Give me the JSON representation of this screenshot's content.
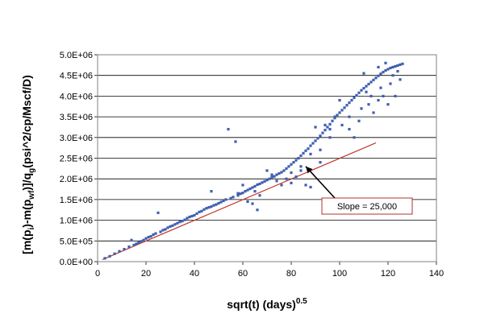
{
  "chart_data": {
    "type": "scatter",
    "xlabel": "sqrt(t) (days)",
    "xlabel_sup": "0.5",
    "ylabel_parts": [
      "[m(p",
      "i",
      ")-m(p",
      "wf",
      ")]/q",
      "g",
      "(psi^2/cp/Mscf/D)"
    ],
    "xlim": [
      0,
      140
    ],
    "ylim": [
      0,
      5000000
    ],
    "x_ticks": [
      0,
      20,
      40,
      60,
      80,
      100,
      120,
      140
    ],
    "x_tick_labels": [
      "0",
      "20",
      "40",
      "60",
      "80",
      "100",
      "120",
      "140"
    ],
    "y_ticks": [
      0,
      500000,
      1000000,
      1500000,
      2000000,
      2500000,
      3000000,
      3500000,
      4000000,
      4500000,
      5000000
    ],
    "y_tick_labels": [
      "0.0E+00",
      "5.0E+05",
      "1.0E+06",
      "1.5E+06",
      "2.0E+06",
      "2.5E+06",
      "3.0E+06",
      "3.5E+06",
      "4.0E+06",
      "4.5E+06",
      "5.0E+06"
    ],
    "grid": "horizontal",
    "series": [
      {
        "kind": "points",
        "color": "#3f5fb0",
        "points": [
          [
            3,
            80000
          ],
          [
            5,
            130000
          ],
          [
            7,
            190000
          ],
          [
            9,
            250000
          ],
          [
            11,
            300000
          ],
          [
            13,
            360000
          ],
          [
            14,
            520000
          ],
          [
            15,
            400000
          ],
          [
            16,
            430000
          ],
          [
            17,
            460000
          ],
          [
            18,
            490000
          ],
          [
            19,
            520000
          ],
          [
            20,
            560000
          ],
          [
            21,
            590000
          ],
          [
            22,
            610000
          ],
          [
            23,
            650000
          ],
          [
            24,
            680000
          ],
          [
            25,
            1180000
          ],
          [
            26,
            720000
          ],
          [
            27,
            760000
          ],
          [
            28,
            780000
          ],
          [
            29,
            820000
          ],
          [
            30,
            850000
          ],
          [
            31,
            870000
          ],
          [
            32,
            900000
          ],
          [
            33,
            930000
          ],
          [
            34,
            960000
          ],
          [
            35,
            980000
          ],
          [
            36,
            1010000
          ],
          [
            37,
            1050000
          ],
          [
            38,
            1080000
          ],
          [
            39,
            1100000
          ],
          [
            40,
            1120000
          ],
          [
            41,
            1160000
          ],
          [
            42,
            1200000
          ],
          [
            43,
            1220000
          ],
          [
            44,
            1260000
          ],
          [
            45,
            1290000
          ],
          [
            46,
            1310000
          ],
          [
            47,
            1330000
          ],
          [
            48,
            1360000
          ],
          [
            49,
            1380000
          ],
          [
            50,
            1410000
          ],
          [
            51,
            1440000
          ],
          [
            52,
            1470000
          ],
          [
            53,
            1500000
          ],
          [
            47,
            1700000
          ],
          [
            54,
            3200000
          ],
          [
            55,
            1530000
          ],
          [
            56,
            1560000
          ],
          [
            57,
            2900000
          ],
          [
            58,
            1600000
          ],
          [
            59,
            1640000
          ],
          [
            60,
            1660000
          ],
          [
            61,
            1700000
          ],
          [
            62,
            1730000
          ],
          [
            63,
            1760000
          ],
          [
            64,
            1790000
          ],
          [
            65,
            1820000
          ],
          [
            66,
            1860000
          ],
          [
            67,
            1880000
          ],
          [
            68,
            1910000
          ],
          [
            69,
            1940000
          ],
          [
            70,
            1970000
          ],
          [
            71,
            2000000
          ],
          [
            72,
            2040000
          ],
          [
            73,
            2060000
          ],
          [
            74,
            2100000
          ],
          [
            75,
            2130000
          ],
          [
            76,
            2160000
          ],
          [
            77,
            2200000
          ],
          [
            78,
            2250000
          ],
          [
            79,
            2300000
          ],
          [
            80,
            2350000
          ],
          [
            81,
            2400000
          ],
          [
            82,
            2450000
          ],
          [
            83,
            2500000
          ],
          [
            84,
            2560000
          ],
          [
            85,
            2620000
          ],
          [
            86,
            2680000
          ],
          [
            87,
            2730000
          ],
          [
            88,
            2800000
          ],
          [
            89,
            2860000
          ],
          [
            90,
            2920000
          ],
          [
            91,
            2980000
          ],
          [
            92,
            3040000
          ],
          [
            93,
            3110000
          ],
          [
            94,
            3180000
          ],
          [
            95,
            3250000
          ],
          [
            96,
            3320000
          ],
          [
            97,
            3400000
          ],
          [
            98,
            3470000
          ],
          [
            99,
            3540000
          ],
          [
            100,
            3600000
          ],
          [
            101,
            3660000
          ],
          [
            102,
            3720000
          ],
          [
            103,
            3780000
          ],
          [
            104,
            3840000
          ],
          [
            105,
            3900000
          ],
          [
            106,
            3960000
          ],
          [
            107,
            4020000
          ],
          [
            108,
            4080000
          ],
          [
            109,
            4140000
          ],
          [
            110,
            4190000
          ],
          [
            111,
            4240000
          ],
          [
            112,
            4290000
          ],
          [
            113,
            4340000
          ],
          [
            114,
            4390000
          ],
          [
            115,
            4440000
          ],
          [
            116,
            4490000
          ],
          [
            117,
            4540000
          ],
          [
            118,
            4580000
          ],
          [
            119,
            4620000
          ],
          [
            120,
            4650000
          ],
          [
            121,
            4680000
          ],
          [
            122,
            4700000
          ],
          [
            123,
            4720000
          ],
          [
            124,
            4740000
          ],
          [
            125,
            4760000
          ],
          [
            126,
            4780000
          ],
          [
            62,
            1450000
          ],
          [
            64,
            1400000
          ],
          [
            66,
            1250000
          ],
          [
            70,
            2200000
          ],
          [
            72,
            2100000
          ],
          [
            74,
            1950000
          ],
          [
            76,
            1850000
          ],
          [
            78,
            2000000
          ],
          [
            80,
            1900000
          ],
          [
            82,
            2050000
          ],
          [
            84,
            2300000
          ],
          [
            86,
            1850000
          ],
          [
            88,
            1800000
          ],
          [
            90,
            3250000
          ],
          [
            92,
            2400000
          ],
          [
            94,
            3300000
          ],
          [
            96,
            3200000
          ],
          [
            98,
            3500000
          ],
          [
            100,
            3900000
          ],
          [
            104,
            3200000
          ],
          [
            106,
            3000000
          ],
          [
            108,
            3400000
          ],
          [
            110,
            4550000
          ],
          [
            112,
            3800000
          ],
          [
            114,
            3600000
          ],
          [
            116,
            4700000
          ],
          [
            118,
            4000000
          ],
          [
            120,
            3800000
          ],
          [
            121,
            4300000
          ],
          [
            122,
            4500000
          ],
          [
            123,
            4000000
          ],
          [
            124,
            4600000
          ],
          [
            125,
            4400000
          ],
          [
            119,
            4800000
          ],
          [
            116,
            3900000
          ],
          [
            67,
            1600000
          ],
          [
            60,
            1850000
          ],
          [
            58,
            1650000
          ],
          [
            65,
            1700000
          ],
          [
            88,
            2600000
          ],
          [
            92,
            2700000
          ],
          [
            96,
            3000000
          ],
          [
            101,
            3300000
          ],
          [
            113,
            4000000
          ],
          [
            117,
            4200000
          ],
          [
            104,
            3500000
          ],
          [
            109,
            3700000
          ],
          [
            111,
            4100000
          ],
          [
            84,
            2200000
          ],
          [
            80,
            2150000
          ]
        ]
      },
      {
        "kind": "line",
        "color": "#c0392b",
        "from": [
          2,
          50000
        ],
        "to": [
          115,
          2870000
        ]
      }
    ],
    "annotation": {
      "text": "Slope = 25,000",
      "arrow_to": [
        86,
        2300000
      ]
    }
  }
}
